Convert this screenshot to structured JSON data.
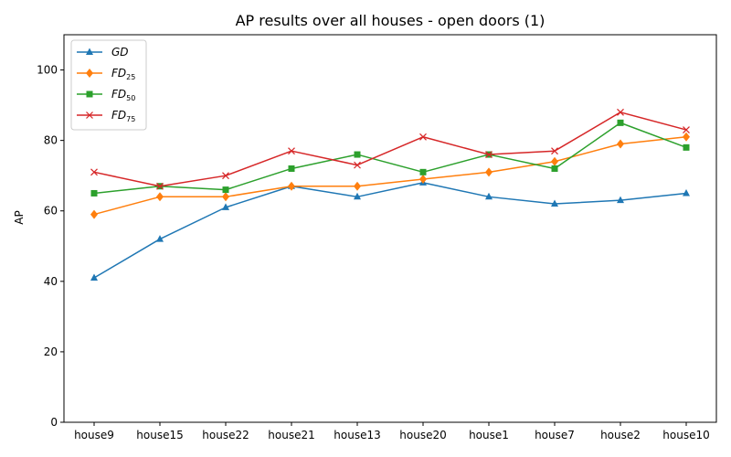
{
  "chart_data": {
    "type": "line",
    "title": "AP results over all houses - open doors (1)",
    "xlabel": "",
    "ylabel": "AP",
    "ylim": [
      0,
      110
    ],
    "yticks": [
      0,
      20,
      40,
      60,
      80,
      100
    ],
    "grid": false,
    "legend_position": "top-left",
    "categories": [
      "house9",
      "house15",
      "house22",
      "house21",
      "house13",
      "house20",
      "house1",
      "house7",
      "house2",
      "house10"
    ],
    "series": [
      {
        "name": "GD",
        "label_main": "GD",
        "label_sub": "",
        "color": "#1f77b4",
        "marker": "triangle",
        "values": [
          41,
          52,
          61,
          67,
          64,
          68,
          64,
          62,
          63,
          65
        ]
      },
      {
        "name": "FD25",
        "label_main": "FD",
        "label_sub": "25",
        "color": "#ff7f0e",
        "marker": "diamond",
        "values": [
          59,
          64,
          64,
          67,
          67,
          69,
          71,
          74,
          79,
          81
        ]
      },
      {
        "name": "FD50",
        "label_main": "FD",
        "label_sub": "50",
        "color": "#2ca02c",
        "marker": "square",
        "values": [
          65,
          67,
          66,
          72,
          76,
          71,
          76,
          72,
          85,
          78
        ]
      },
      {
        "name": "FD75",
        "label_main": "FD",
        "label_sub": "75",
        "color": "#d62728",
        "marker": "x",
        "values": [
          71,
          67,
          70,
          77,
          73,
          81,
          76,
          77,
          88,
          83
        ]
      }
    ]
  }
}
